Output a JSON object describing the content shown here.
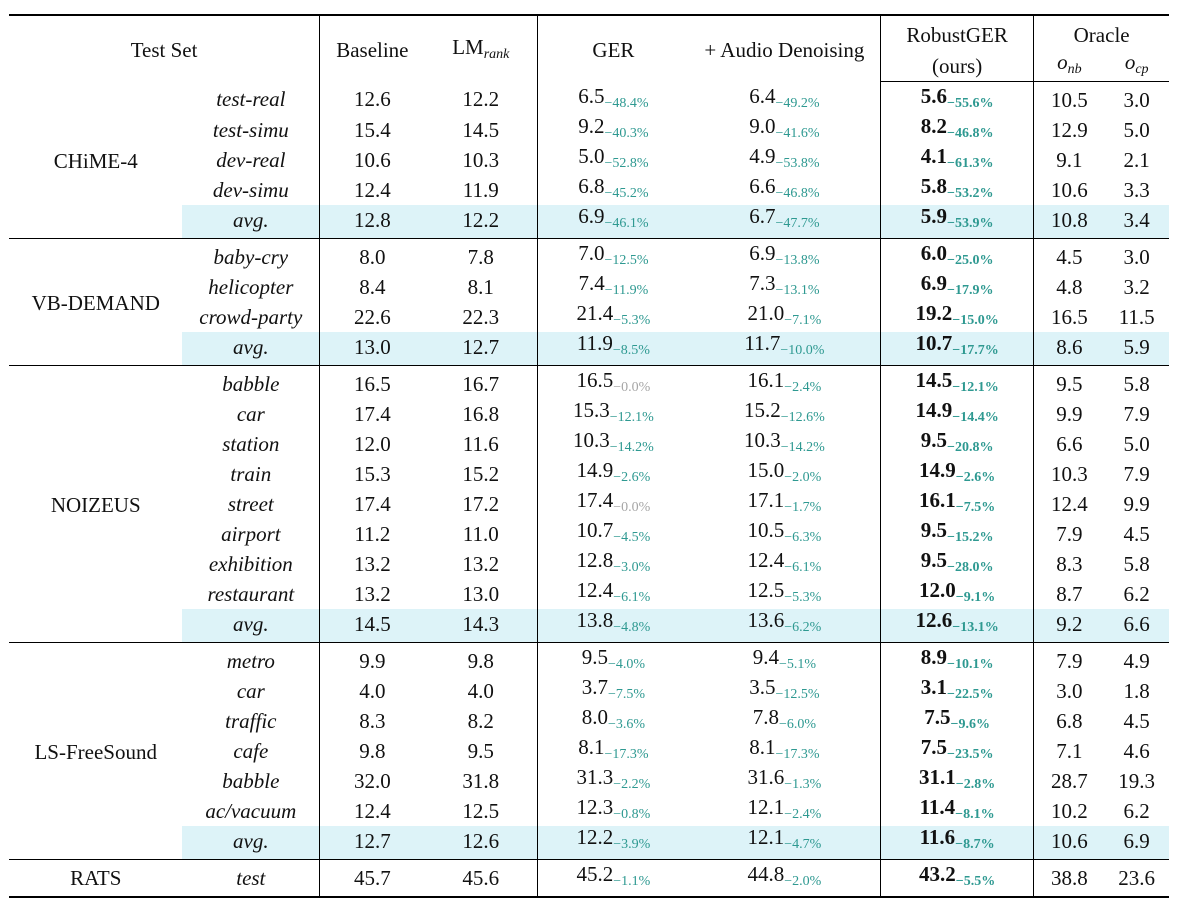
{
  "header": {
    "test_set": "Test Set",
    "baseline": "Baseline",
    "lm_rank": "LM",
    "lm_rank_sub": "rank",
    "ger": "GER",
    "audio_denoising": "+ Audio Denoising",
    "robustger": "RobustGER",
    "robustger_ours": "(ours)",
    "oracle": "Oracle",
    "o_nb": "o",
    "o_nb_sub": "nb",
    "o_cp": "o",
    "o_cp_sub": "cp"
  },
  "groups": [
    {
      "name": "CHiME-4",
      "rows": [
        {
          "set": "test-real",
          "baseline": "12.6",
          "lm": "12.2",
          "ger": "6.5",
          "ger_d": "−48.4%",
          "ad": "6.4",
          "ad_d": "−49.2%",
          "rg": "5.6",
          "rg_d": "−55.6%",
          "onb": "10.5",
          "ocp": "3.0"
        },
        {
          "set": "test-simu",
          "baseline": "15.4",
          "lm": "14.5",
          "ger": "9.2",
          "ger_d": "−40.3%",
          "ad": "9.0",
          "ad_d": "−41.6%",
          "rg": "8.2",
          "rg_d": "−46.8%",
          "onb": "12.9",
          "ocp": "5.0"
        },
        {
          "set": "dev-real",
          "baseline": "10.6",
          "lm": "10.3",
          "ger": "5.0",
          "ger_d": "−52.8%",
          "ad": "4.9",
          "ad_d": "−53.8%",
          "rg": "4.1",
          "rg_d": "−61.3%",
          "onb": "9.1",
          "ocp": "2.1"
        },
        {
          "set": "dev-simu",
          "baseline": "12.4",
          "lm": "11.9",
          "ger": "6.8",
          "ger_d": "−45.2%",
          "ad": "6.6",
          "ad_d": "−46.8%",
          "rg": "5.8",
          "rg_d": "−53.2%",
          "onb": "10.6",
          "ocp": "3.3"
        },
        {
          "set": "avg.",
          "avg": true,
          "baseline": "12.8",
          "lm": "12.2",
          "ger": "6.9",
          "ger_d": "−46.1%",
          "ad": "6.7",
          "ad_d": "−47.7%",
          "rg": "5.9",
          "rg_d": "−53.9%",
          "onb": "10.8",
          "ocp": "3.4"
        }
      ]
    },
    {
      "name": "VB-DEMAND",
      "rows": [
        {
          "set": "baby-cry",
          "baseline": "8.0",
          "lm": "7.8",
          "ger": "7.0",
          "ger_d": "−12.5%",
          "ad": "6.9",
          "ad_d": "−13.8%",
          "rg": "6.0",
          "rg_d": "−25.0%",
          "onb": "4.5",
          "ocp": "3.0"
        },
        {
          "set": "helicopter",
          "baseline": "8.4",
          "lm": "8.1",
          "ger": "7.4",
          "ger_d": "−11.9%",
          "ad": "7.3",
          "ad_d": "−13.1%",
          "rg": "6.9",
          "rg_d": "−17.9%",
          "onb": "4.8",
          "ocp": "3.2"
        },
        {
          "set": "crowd-party",
          "baseline": "22.6",
          "lm": "22.3",
          "ger": "21.4",
          "ger_d": "−5.3%",
          "ad": "21.0",
          "ad_d": "−7.1%",
          "rg": "19.2",
          "rg_d": "−15.0%",
          "onb": "16.5",
          "ocp": "11.5"
        },
        {
          "set": "avg.",
          "avg": true,
          "baseline": "13.0",
          "lm": "12.7",
          "ger": "11.9",
          "ger_d": "−8.5%",
          "ad": "11.7",
          "ad_d": "−10.0%",
          "rg": "10.7",
          "rg_d": "−17.7%",
          "onb": "8.6",
          "ocp": "5.9"
        }
      ]
    },
    {
      "name": "NOIZEUS",
      "rows": [
        {
          "set": "babble",
          "baseline": "16.5",
          "lm": "16.7",
          "ger": "16.5",
          "ger_d": "−0.0%",
          "ger_gray": true,
          "ad": "16.1",
          "ad_d": "−2.4%",
          "rg": "14.5",
          "rg_d": "−12.1%",
          "onb": "9.5",
          "ocp": "5.8"
        },
        {
          "set": "car",
          "baseline": "17.4",
          "lm": "16.8",
          "ger": "15.3",
          "ger_d": "−12.1%",
          "ad": "15.2",
          "ad_d": "−12.6%",
          "rg": "14.9",
          "rg_d": "−14.4%",
          "onb": "9.9",
          "ocp": "7.9"
        },
        {
          "set": "station",
          "baseline": "12.0",
          "lm": "11.6",
          "ger": "10.3",
          "ger_d": "−14.2%",
          "ad": "10.3",
          "ad_d": "−14.2%",
          "rg": "9.5",
          "rg_d": "−20.8%",
          "onb": "6.6",
          "ocp": "5.0"
        },
        {
          "set": "train",
          "baseline": "15.3",
          "lm": "15.2",
          "ger": "14.9",
          "ger_d": "−2.6%",
          "ad": "15.0",
          "ad_d": "−2.0%",
          "rg": "14.9",
          "rg_d": "−2.6%",
          "onb": "10.3",
          "ocp": "7.9"
        },
        {
          "set": "street",
          "baseline": "17.4",
          "lm": "17.2",
          "ger": "17.4",
          "ger_d": "−0.0%",
          "ger_gray": true,
          "ad": "17.1",
          "ad_d": "−1.7%",
          "rg": "16.1",
          "rg_d": "−7.5%",
          "onb": "12.4",
          "ocp": "9.9"
        },
        {
          "set": "airport",
          "baseline": "11.2",
          "lm": "11.0",
          "ger": "10.7",
          "ger_d": "−4.5%",
          "ad": "10.5",
          "ad_d": "−6.3%",
          "rg": "9.5",
          "rg_d": "−15.2%",
          "onb": "7.9",
          "ocp": "4.5"
        },
        {
          "set": "exhibition",
          "baseline": "13.2",
          "lm": "13.2",
          "ger": "12.8",
          "ger_d": "−3.0%",
          "ad": "12.4",
          "ad_d": "−6.1%",
          "rg": "9.5",
          "rg_d": "−28.0%",
          "onb": "8.3",
          "ocp": "5.8"
        },
        {
          "set": "restaurant",
          "baseline": "13.2",
          "lm": "13.0",
          "ger": "12.4",
          "ger_d": "−6.1%",
          "ad": "12.5",
          "ad_d": "−5.3%",
          "rg": "12.0",
          "rg_d": "−9.1%",
          "onb": "8.7",
          "ocp": "6.2"
        },
        {
          "set": "avg.",
          "avg": true,
          "baseline": "14.5",
          "lm": "14.3",
          "ger": "13.8",
          "ger_d": "−4.8%",
          "ad": "13.6",
          "ad_d": "−6.2%",
          "rg": "12.6",
          "rg_d": "−13.1%",
          "onb": "9.2",
          "ocp": "6.6"
        }
      ]
    },
    {
      "name": "LS-FreeSound",
      "rows": [
        {
          "set": "metro",
          "baseline": "9.9",
          "lm": "9.8",
          "ger": "9.5",
          "ger_d": "−4.0%",
          "ad": "9.4",
          "ad_d": "−5.1%",
          "rg": "8.9",
          "rg_d": "−10.1%",
          "onb": "7.9",
          "ocp": "4.9"
        },
        {
          "set": "car",
          "baseline": "4.0",
          "lm": "4.0",
          "ger": "3.7",
          "ger_d": "−7.5%",
          "ad": "3.5",
          "ad_d": "−12.5%",
          "rg": "3.1",
          "rg_d": "−22.5%",
          "onb": "3.0",
          "ocp": "1.8"
        },
        {
          "set": "traffic",
          "baseline": "8.3",
          "lm": "8.2",
          "ger": "8.0",
          "ger_d": "−3.6%",
          "ad": "7.8",
          "ad_d": "−6.0%",
          "rg": "7.5",
          "rg_d": "−9.6%",
          "onb": "6.8",
          "ocp": "4.5"
        },
        {
          "set": "cafe",
          "baseline": "9.8",
          "lm": "9.5",
          "ger": "8.1",
          "ger_d": "−17.3%",
          "ad": "8.1",
          "ad_d": "−17.3%",
          "rg": "7.5",
          "rg_d": "−23.5%",
          "onb": "7.1",
          "ocp": "4.6"
        },
        {
          "set": "babble",
          "baseline": "32.0",
          "lm": "31.8",
          "ger": "31.3",
          "ger_d": "−2.2%",
          "ad": "31.6",
          "ad_d": "−1.3%",
          "rg": "31.1",
          "rg_d": "−2.8%",
          "onb": "28.7",
          "ocp": "19.3"
        },
        {
          "set": "ac/vacuum",
          "baseline": "12.4",
          "lm": "12.5",
          "ger": "12.3",
          "ger_d": "−0.8%",
          "ad": "12.1",
          "ad_d": "−2.4%",
          "rg": "11.4",
          "rg_d": "−8.1%",
          "onb": "10.2",
          "ocp": "6.2"
        },
        {
          "set": "avg.",
          "avg": true,
          "baseline": "12.7",
          "lm": "12.6",
          "ger": "12.2",
          "ger_d": "−3.9%",
          "ad": "12.1",
          "ad_d": "−4.7%",
          "rg": "11.6",
          "rg_d": "−8.7%",
          "onb": "10.6",
          "ocp": "6.9"
        }
      ]
    },
    {
      "name": "RATS",
      "rows": [
        {
          "set": "test",
          "baseline": "45.7",
          "lm": "45.6",
          "ger": "45.2",
          "ger_d": "−1.1%",
          "ad": "44.8",
          "ad_d": "−2.0%",
          "rg": "43.2",
          "rg_d": "−5.5%",
          "onb": "38.8",
          "ocp": "23.6"
        }
      ]
    }
  ],
  "colors": {
    "delta": "#2e9991",
    "delta_zero": "#a6a6a6",
    "avg_highlight": "#ddf3f8"
  }
}
